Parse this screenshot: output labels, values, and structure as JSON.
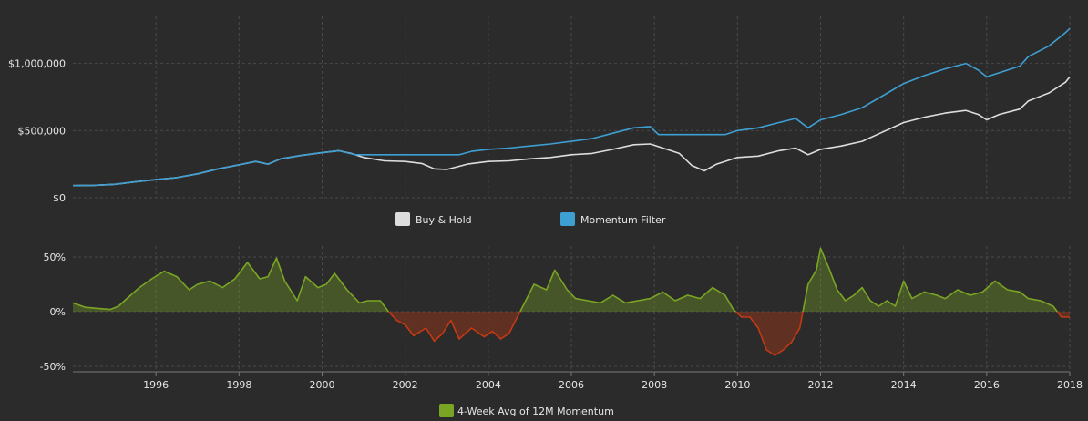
{
  "chart_data": [
    {
      "type": "line",
      "name_hint": "equity",
      "ylim": [
        0,
        1350000
      ],
      "y_ticks": [
        0,
        500000,
        1000000
      ],
      "y_tick_labels": [
        "$0",
        "$500,000",
        "$1,000,000"
      ],
      "x_range": [
        1994.0,
        2018.0
      ],
      "legend": "bottom-center",
      "grid": true,
      "series": [
        {
          "name": "Buy & Hold",
          "color": "#dddddd",
          "points": [
            [
              1994.0,
              90000
            ],
            [
              1994.5,
              92000
            ],
            [
              1995.0,
              100000
            ],
            [
              1995.5,
              118000
            ],
            [
              1996.0,
              135000
            ],
            [
              1996.5,
              150000
            ],
            [
              1997.0,
              178000
            ],
            [
              1997.5,
              215000
            ],
            [
              1998.0,
              245000
            ],
            [
              1998.4,
              270000
            ],
            [
              1998.7,
              250000
            ],
            [
              1999.0,
              290000
            ],
            [
              1999.5,
              315000
            ],
            [
              2000.0,
              335000
            ],
            [
              2000.4,
              350000
            ],
            [
              2000.7,
              330000
            ],
            [
              2001.0,
              300000
            ],
            [
              2001.5,
              275000
            ],
            [
              2002.0,
              270000
            ],
            [
              2002.4,
              255000
            ],
            [
              2002.7,
              215000
            ],
            [
              2003.0,
              210000
            ],
            [
              2003.5,
              250000
            ],
            [
              2004.0,
              270000
            ],
            [
              2004.5,
              275000
            ],
            [
              2005.0,
              290000
            ],
            [
              2005.5,
              300000
            ],
            [
              2006.0,
              320000
            ],
            [
              2006.5,
              330000
            ],
            [
              2007.0,
              360000
            ],
            [
              2007.5,
              395000
            ],
            [
              2007.9,
              400000
            ],
            [
              2008.3,
              360000
            ],
            [
              2008.6,
              330000
            ],
            [
              2008.9,
              240000
            ],
            [
              2009.2,
              200000
            ],
            [
              2009.5,
              250000
            ],
            [
              2010.0,
              300000
            ],
            [
              2010.5,
              310000
            ],
            [
              2011.0,
              350000
            ],
            [
              2011.4,
              370000
            ],
            [
              2011.7,
              320000
            ],
            [
              2012.0,
              360000
            ],
            [
              2012.5,
              385000
            ],
            [
              2013.0,
              420000
            ],
            [
              2013.5,
              490000
            ],
            [
              2014.0,
              560000
            ],
            [
              2014.5,
              600000
            ],
            [
              2015.0,
              630000
            ],
            [
              2015.5,
              650000
            ],
            [
              2015.8,
              620000
            ],
            [
              2016.0,
              580000
            ],
            [
              2016.3,
              620000
            ],
            [
              2016.8,
              660000
            ],
            [
              2017.0,
              720000
            ],
            [
              2017.5,
              780000
            ],
            [
              2017.9,
              860000
            ],
            [
              2018.0,
              900000
            ]
          ]
        },
        {
          "name": "Momentum Filter",
          "color": "#3e9fd2",
          "points": [
            [
              1994.0,
              90000
            ],
            [
              1994.5,
              92000
            ],
            [
              1995.0,
              100000
            ],
            [
              1995.5,
              118000
            ],
            [
              1996.0,
              135000
            ],
            [
              1996.5,
              150000
            ],
            [
              1997.0,
              178000
            ],
            [
              1997.5,
              215000
            ],
            [
              1998.0,
              245000
            ],
            [
              1998.4,
              270000
            ],
            [
              1998.7,
              250000
            ],
            [
              1999.0,
              290000
            ],
            [
              1999.5,
              315000
            ],
            [
              2000.0,
              335000
            ],
            [
              2000.4,
              350000
            ],
            [
              2000.8,
              320000
            ],
            [
              2001.5,
              320000
            ],
            [
              2002.5,
              320000
            ],
            [
              2003.3,
              320000
            ],
            [
              2003.6,
              345000
            ],
            [
              2004.0,
              360000
            ],
            [
              2004.5,
              370000
            ],
            [
              2005.0,
              385000
            ],
            [
              2005.5,
              400000
            ],
            [
              2006.0,
              420000
            ],
            [
              2006.5,
              440000
            ],
            [
              2007.0,
              480000
            ],
            [
              2007.5,
              520000
            ],
            [
              2007.9,
              530000
            ],
            [
              2008.1,
              470000
            ],
            [
              2009.0,
              470000
            ],
            [
              2009.7,
              470000
            ],
            [
              2010.0,
              500000
            ],
            [
              2010.5,
              520000
            ],
            [
              2011.0,
              560000
            ],
            [
              2011.4,
              590000
            ],
            [
              2011.7,
              520000
            ],
            [
              2012.0,
              580000
            ],
            [
              2012.5,
              620000
            ],
            [
              2013.0,
              670000
            ],
            [
              2013.5,
              760000
            ],
            [
              2014.0,
              850000
            ],
            [
              2014.5,
              910000
            ],
            [
              2015.0,
              960000
            ],
            [
              2015.5,
              1000000
            ],
            [
              2015.8,
              950000
            ],
            [
              2016.0,
              900000
            ],
            [
              2016.3,
              930000
            ],
            [
              2016.8,
              980000
            ],
            [
              2017.0,
              1050000
            ],
            [
              2017.5,
              1130000
            ],
            [
              2017.9,
              1230000
            ],
            [
              2018.0,
              1260000
            ]
          ]
        }
      ]
    },
    {
      "type": "area",
      "name_hint": "momentum",
      "ylim": [
        -0.55,
        0.6
      ],
      "y_ticks": [
        -0.5,
        0,
        0.5
      ],
      "y_tick_labels": [
        "-50%",
        "0%",
        "50%"
      ],
      "x_range": [
        1994.0,
        2018.0
      ],
      "x_ticks": [
        1996,
        1998,
        2000,
        2002,
        2004,
        2006,
        2008,
        2010,
        2012,
        2014,
        2016,
        2018
      ],
      "x_tick_labels": [
        "1996",
        "1998",
        "2000",
        "2002",
        "2004",
        "2006",
        "2008",
        "2010",
        "2012",
        "2014",
        "2016",
        "2018"
      ],
      "legend": "bottom-center",
      "grid": true,
      "positive_color": "#7aa524",
      "negative_color": "#c23a14",
      "series": [
        {
          "name": "4-Week Avg of 12M Momentum",
          "color": "#7aa524",
          "points": [
            [
              1994.0,
              0.08
            ],
            [
              1994.3,
              0.04
            ],
            [
              1994.6,
              0.03
            ],
            [
              1994.9,
              0.02
            ],
            [
              1995.1,
              0.05
            ],
            [
              1995.3,
              0.12
            ],
            [
              1995.6,
              0.22
            ],
            [
              1995.9,
              0.3
            ],
            [
              1996.2,
              0.37
            ],
            [
              1996.5,
              0.32
            ],
            [
              1996.8,
              0.2
            ],
            [
              1997.0,
              0.25
            ],
            [
              1997.3,
              0.28
            ],
            [
              1997.6,
              0.22
            ],
            [
              1997.9,
              0.3
            ],
            [
              1998.2,
              0.45
            ],
            [
              1998.5,
              0.3
            ],
            [
              1998.7,
              0.32
            ],
            [
              1998.9,
              0.49
            ],
            [
              1999.1,
              0.28
            ],
            [
              1999.4,
              0.1
            ],
            [
              1999.6,
              0.32
            ],
            [
              1999.9,
              0.22
            ],
            [
              2000.1,
              0.25
            ],
            [
              2000.3,
              0.35
            ],
            [
              2000.6,
              0.2
            ],
            [
              2000.9,
              0.08
            ],
            [
              2001.1,
              0.1
            ],
            [
              2001.4,
              0.1
            ],
            [
              2001.6,
              0.0
            ],
            [
              2001.8,
              -0.08
            ],
            [
              2002.0,
              -0.12
            ],
            [
              2002.2,
              -0.22
            ],
            [
              2002.5,
              -0.15
            ],
            [
              2002.7,
              -0.27
            ],
            [
              2002.9,
              -0.2
            ],
            [
              2003.1,
              -0.08
            ],
            [
              2003.3,
              -0.25
            ],
            [
              2003.6,
              -0.15
            ],
            [
              2003.9,
              -0.23
            ],
            [
              2004.1,
              -0.18
            ],
            [
              2004.3,
              -0.25
            ],
            [
              2004.5,
              -0.2
            ],
            [
              2004.7,
              -0.05
            ],
            [
              2004.9,
              0.1
            ],
            [
              2005.1,
              0.25
            ],
            [
              2005.4,
              0.2
            ],
            [
              2005.6,
              0.38
            ],
            [
              2005.9,
              0.2
            ],
            [
              2006.1,
              0.12
            ],
            [
              2006.4,
              0.1
            ],
            [
              2006.7,
              0.08
            ],
            [
              2007.0,
              0.15
            ],
            [
              2007.3,
              0.08
            ],
            [
              2007.6,
              0.1
            ],
            [
              2007.9,
              0.12
            ],
            [
              2008.2,
              0.18
            ],
            [
              2008.5,
              0.1
            ],
            [
              2008.8,
              0.15
            ],
            [
              2009.1,
              0.12
            ],
            [
              2009.4,
              0.22
            ],
            [
              2009.7,
              0.15
            ],
            [
              2009.9,
              0.02
            ],
            [
              2010.1,
              -0.05
            ],
            [
              2010.3,
              -0.05
            ],
            [
              2010.5,
              -0.15
            ],
            [
              2010.7,
              -0.35
            ],
            [
              2010.9,
              -0.4
            ],
            [
              2011.1,
              -0.35
            ],
            [
              2011.3,
              -0.28
            ],
            [
              2011.5,
              -0.15
            ],
            [
              2011.7,
              0.25
            ],
            [
              2011.9,
              0.38
            ],
            [
              2012.0,
              0.58
            ],
            [
              2012.2,
              0.4
            ],
            [
              2012.4,
              0.2
            ],
            [
              2012.6,
              0.1
            ],
            [
              2012.8,
              0.15
            ],
            [
              2013.0,
              0.22
            ],
            [
              2013.2,
              0.1
            ],
            [
              2013.4,
              0.05
            ],
            [
              2013.6,
              0.1
            ],
            [
              2013.8,
              0.05
            ],
            [
              2014.0,
              0.28
            ],
            [
              2014.2,
              0.12
            ],
            [
              2014.5,
              0.18
            ],
            [
              2014.8,
              0.15
            ],
            [
              2015.0,
              0.12
            ],
            [
              2015.3,
              0.2
            ],
            [
              2015.6,
              0.15
            ],
            [
              2015.9,
              0.18
            ],
            [
              2016.2,
              0.28
            ],
            [
              2016.5,
              0.2
            ],
            [
              2016.8,
              0.18
            ],
            [
              2017.0,
              0.12
            ],
            [
              2017.3,
              0.1
            ],
            [
              2017.6,
              0.05
            ],
            [
              2017.8,
              -0.05
            ],
            [
              2018.0,
              -0.05
            ]
          ]
        }
      ]
    }
  ],
  "legend": {
    "buy_hold": {
      "label": "Buy & Hold",
      "color": "#dddddd"
    },
    "momentum_filter": {
      "label": "Momentum Filter",
      "color": "#3e9fd2"
    },
    "momentum_avg": {
      "label": "4-Week Avg of 12M Momentum",
      "color": "#7aa524"
    }
  },
  "colors": {
    "background": "#2b2b2b",
    "text": "#e6e6e6",
    "grid": "#4a4a4a"
  }
}
